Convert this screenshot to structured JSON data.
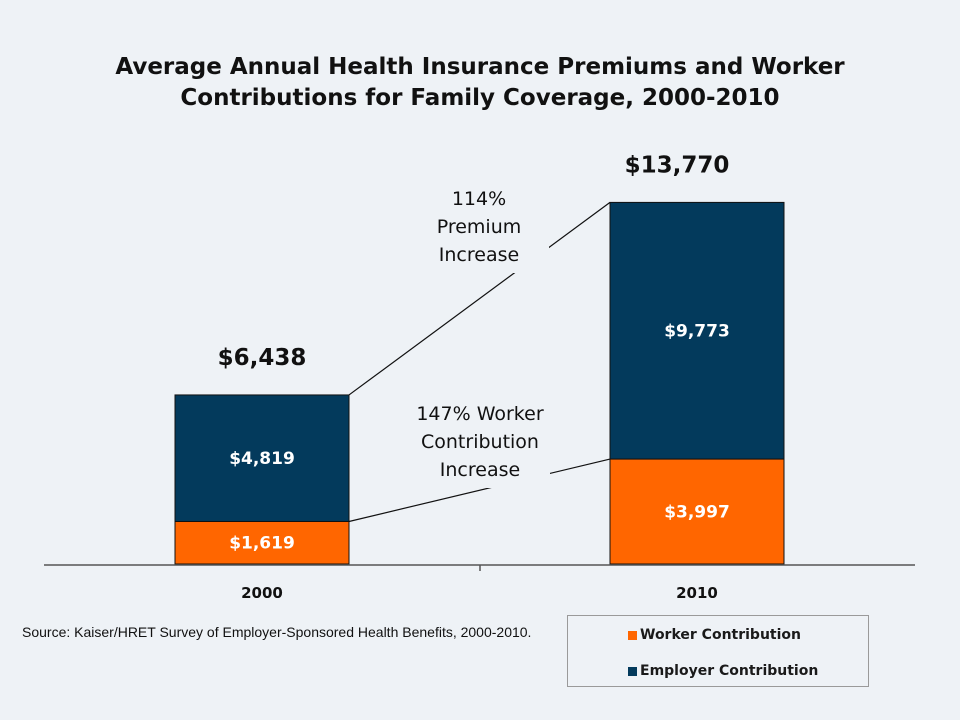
{
  "title_line1": "Average Annual Health Insurance Premiums and Worker",
  "title_line2": "Contributions for Family Coverage, 2000-2010",
  "colors": {
    "worker": "#ff6600",
    "employer": "#033a5c",
    "background": "#eef2f6"
  },
  "source": "Source:  Kaiser/HRET Survey of Employer-Sponsored Health Benefits, 2000-2010.",
  "annotations": {
    "premium": [
      "114%",
      "Premium",
      "Increase"
    ],
    "worker": [
      "147% Worker",
      "Contribution",
      "Increase"
    ]
  },
  "chart_data": {
    "type": "bar",
    "stacked": true,
    "categories": [
      "2000",
      "2010"
    ],
    "series": [
      {
        "name": "Worker Contribution",
        "values": [
          1619,
          3997
        ],
        "labels": [
          "$1,619",
          "$3,997"
        ]
      },
      {
        "name": "Employer Contribution",
        "values": [
          4819,
          9773
        ],
        "labels": [
          "$4,819",
          "$9,773"
        ]
      }
    ],
    "totals": [
      6438,
      13770
    ],
    "total_labels": [
      "$6,438",
      "$13,770"
    ],
    "legend": [
      "Worker Contribution",
      "Employer Contribution"
    ],
    "legend_position": "bottom-right"
  }
}
